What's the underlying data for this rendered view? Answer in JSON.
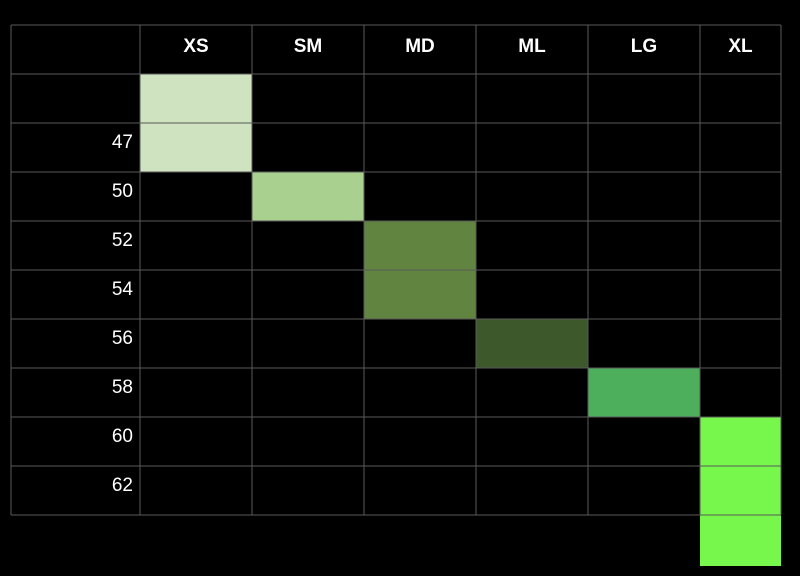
{
  "chart_data": {
    "type": "table",
    "columns": [
      "XS",
      "SM",
      "MD",
      "ML",
      "LG",
      "XL"
    ],
    "rows": [
      "",
      "47",
      "50",
      "52",
      "54",
      "56",
      "58",
      "60",
      "62"
    ],
    "highlights": [
      {
        "column": "XS",
        "row_start": "",
        "row_end": "47",
        "color": "#cfe3c0"
      },
      {
        "column": "SM",
        "row_start": "50",
        "row_end": "50",
        "color": "#a9d08e"
      },
      {
        "column": "MD",
        "row_start": "52",
        "row_end": "54",
        "color": "#628441"
      },
      {
        "column": "ML",
        "row_start": "56",
        "row_end": "56",
        "color": "#3d582a"
      },
      {
        "column": "LG",
        "row_start": "58",
        "row_end": "58",
        "color": "#4daf5c"
      },
      {
        "column": "XL",
        "row_start": "60",
        "row_end": "62",
        "extends_below_table": true,
        "color": "#77f74b"
      }
    ],
    "background_color": "#000000",
    "grid_color": "#5a5a5a",
    "text_color": "#ffffff"
  }
}
